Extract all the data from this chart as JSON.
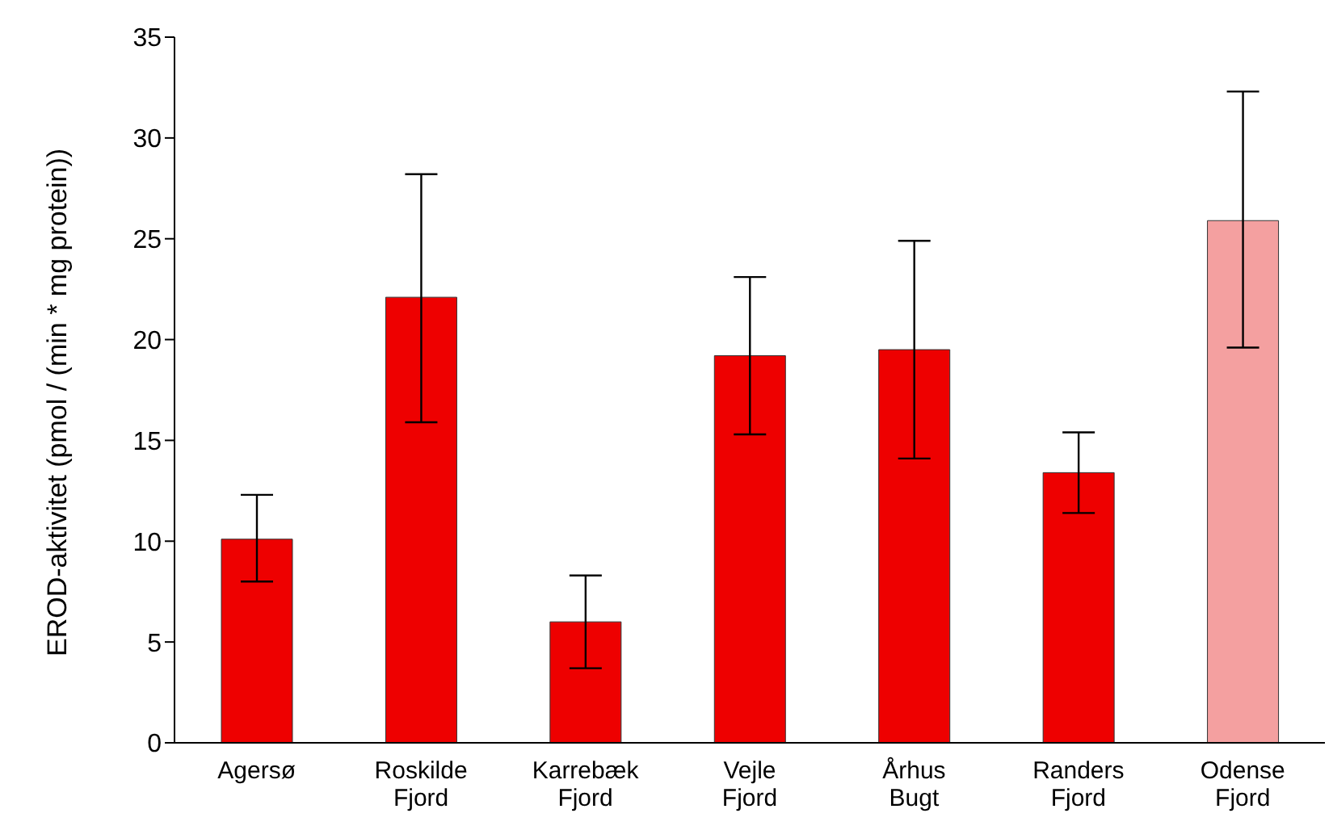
{
  "chart_data": {
    "type": "bar",
    "ylabel": "EROD-aktivitet (pmol / (min * mg protein))",
    "categories": [
      "Agersø",
      "Roskilde Fjord",
      "Karrebæk Fjord",
      "Vejle Fjord",
      "Århus Bugt",
      "Randers Fjord",
      "Odense Fjord"
    ],
    "values": [
      10.1,
      22.1,
      6.0,
      19.2,
      19.5,
      13.4,
      25.9
    ],
    "colors": [
      "#ee0000",
      "#ee0000",
      "#ee0000",
      "#ee0000",
      "#ee0000",
      "#ee0000",
      "#f4a0a0"
    ],
    "errors": [
      [
        8.0,
        12.3
      ],
      [
        15.9,
        28.2
      ],
      [
        3.7,
        8.3
      ],
      [
        15.3,
        23.1
      ],
      [
        14.1,
        24.9
      ],
      [
        11.4,
        15.4
      ],
      [
        19.6,
        32.3
      ]
    ],
    "ylim": [
      0,
      35
    ],
    "yticks": [
      0,
      5,
      10,
      15,
      20,
      25,
      30,
      35
    ],
    "grid": false,
    "legend": false
  }
}
